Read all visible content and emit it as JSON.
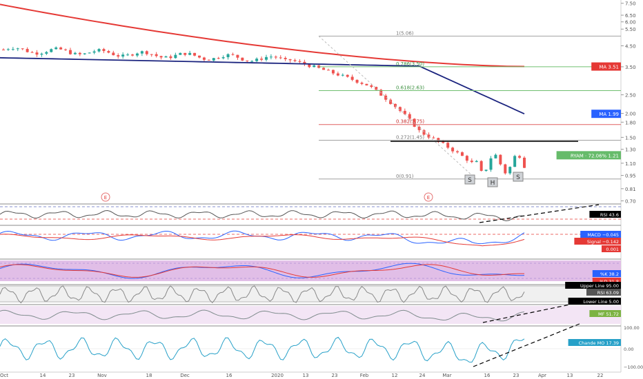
{
  "chart_data": {
    "type": "candlestick",
    "ticker": "RYAM",
    "price_axis": {
      "ticks": [
        "7.50",
        "6.50",
        "6.00",
        "5.50",
        "4.50",
        "3.50",
        "2.50",
        "2.00",
        "1.80",
        "1.50",
        "1.30",
        "1.10",
        "0.95",
        "0.81",
        "0.70"
      ],
      "scale": "log",
      "range": [
        0.68,
        7.8
      ]
    },
    "x_axis": {
      "labels": [
        "Oct",
        "14",
        "23",
        "Nov",
        "18",
        "Dec",
        "16",
        "2020",
        "13",
        "23",
        "Feb",
        "12",
        "24",
        "Mar",
        "16",
        "23",
        "Apr",
        "13",
        "22"
      ]
    },
    "fib_levels": [
      {
        "label": "1(5.06)",
        "value": 5.06,
        "color": "#a0a0a0"
      },
      {
        "label": "0.786(3.50)",
        "value": 3.5,
        "color": "#6fbf6f"
      },
      {
        "label": "0.618(2.63)",
        "value": 2.63,
        "color": "#6fbf6f"
      },
      {
        "label": "0.382(1.75)",
        "value": 1.75,
        "color": "#e06060"
      },
      {
        "label": "0.272(1.45)",
        "value": 1.45,
        "color": "#a0a0a0"
      },
      {
        "label": "0(0.91)",
        "value": 0.91,
        "color": "#a0a0a0"
      }
    ],
    "neckline": 1.43,
    "pattern_labels": [
      "S",
      "H",
      "S"
    ],
    "event_markers": [
      "E",
      "E"
    ],
    "ma_red": {
      "start": 7.4,
      "end": 3.51
    },
    "ma_blue": {
      "start": 3.9,
      "end": 1.99
    },
    "badges": [
      {
        "text": "MA  3.51",
        "value": 3.51,
        "color": "#e53935"
      },
      {
        "text": "MA  1.99",
        "value": 1.99,
        "color": "#2962ff"
      },
      {
        "text": "RYAM · 72.06%  1.21",
        "value": 1.21,
        "color": "#66bb6a"
      }
    ],
    "indicators": [
      {
        "name": "RSI",
        "value_text": "43.6",
        "color": "#000000"
      },
      {
        "name": "MACD",
        "value_text": "−0.045",
        "color": "#2962ff"
      },
      {
        "name": "Signal",
        "value_text": "−0.142",
        "color": "#e53935"
      },
      {
        "name": "MACD level",
        "value_text": "0.001",
        "color": "#e53935"
      },
      {
        "name": "%K",
        "value_text": "38.2",
        "color": "#2962ff"
      },
      {
        "name": "%D",
        "value_text": "31.8",
        "color": "#e53935"
      },
      {
        "name": "Upper Line",
        "value_text": "95.00",
        "color": "#000000"
      },
      {
        "name": "RSI",
        "value_text": "63.09",
        "color": "#555555"
      },
      {
        "name": "Lower Line",
        "value_text": "5.00",
        "color": "#000000"
      },
      {
        "name": "MF",
        "value_text": "51.72",
        "color": "#7cb342"
      },
      {
        "name": "Chande MO",
        "value_text": "17.39",
        "color": "#26a0c8"
      }
    ],
    "cmo_axis": [
      "100.00",
      "0.00",
      "−100.00"
    ]
  }
}
